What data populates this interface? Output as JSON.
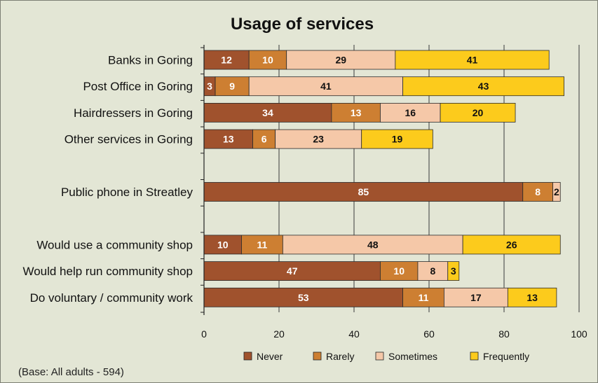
{
  "chart_data": {
    "type": "bar",
    "orientation": "horizontal",
    "stacked": true,
    "title": "Usage of services",
    "note": "(Base: All adults - 594)",
    "xlim": [
      0,
      100
    ],
    "xticks": [
      0,
      20,
      40,
      60,
      80,
      100
    ],
    "grid": true,
    "legend_position": "bottom",
    "categories": [
      "Banks in Goring",
      "Post Office in Goring",
      "Hairdressers in Goring",
      "Other services in Goring",
      "",
      "Public phone in Streatley",
      "",
      "Would use a community shop",
      "Would help run community shop",
      "Do voluntary / community work"
    ],
    "series": [
      {
        "name": "Never",
        "color": "#a0522d",
        "label_color": "#ffffff",
        "values": [
          12,
          3,
          34,
          13,
          null,
          85,
          null,
          10,
          47,
          53
        ]
      },
      {
        "name": "Rarely",
        "color": "#cd7f32",
        "label_color": "#ffffff",
        "values": [
          10,
          9,
          13,
          6,
          null,
          8,
          null,
          11,
          10,
          11
        ]
      },
      {
        "name": "Sometimes",
        "color": "#f5c8a8",
        "label_color": "#111111",
        "values": [
          29,
          41,
          16,
          23,
          null,
          2,
          null,
          48,
          8,
          17
        ]
      },
      {
        "name": "Frequently",
        "color": "#fccb1c",
        "label_color": "#111111",
        "values": [
          41,
          43,
          20,
          19,
          null,
          null,
          null,
          26,
          3,
          13
        ]
      }
    ]
  }
}
